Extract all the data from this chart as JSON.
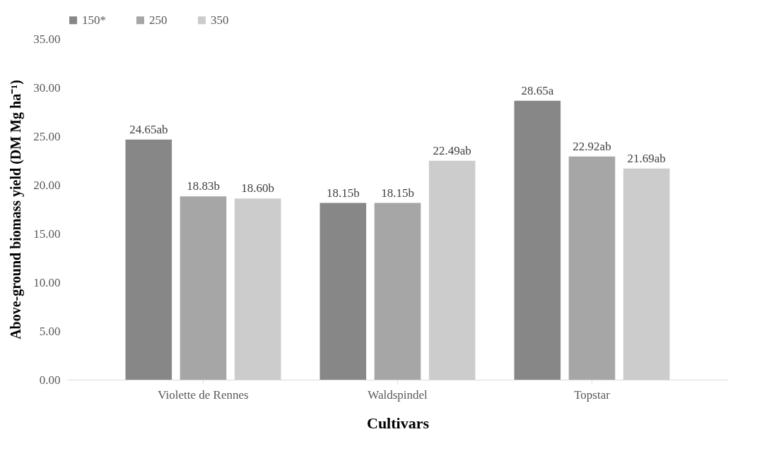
{
  "chart_data": {
    "type": "bar",
    "xlabel": "Cultivars",
    "ylabel": "Above-ground biomass yield (DM Mg ha⁻¹)",
    "categories": [
      "Violette de Rennes",
      "Waldspindel",
      "Topstar"
    ],
    "series": [
      {
        "name": "150*",
        "color": "#878787",
        "values": [
          24.65,
          18.15,
          28.65
        ],
        "value_labels": [
          "24.65ab",
          "18.15b",
          "28.65a"
        ]
      },
      {
        "name": "250",
        "color": "#a6a6a6",
        "values": [
          18.83,
          18.15,
          22.92
        ],
        "value_labels": [
          "18.83b",
          "18.15b",
          "22.92ab"
        ]
      },
      {
        "name": "350",
        "color": "#cccccc",
        "values": [
          18.6,
          22.49,
          21.69
        ],
        "value_labels": [
          "18.60b",
          "22.49ab",
          "21.69ab"
        ]
      }
    ],
    "ylim": [
      0,
      35
    ],
    "yticks": [
      {
        "value": 0,
        "label": "0.00"
      },
      {
        "value": 5,
        "label": "5.00"
      },
      {
        "value": 10,
        "label": "10.00"
      },
      {
        "value": 15,
        "label": "15.00"
      },
      {
        "value": 20,
        "label": "20.00"
      },
      {
        "value": 25,
        "label": "25.00"
      },
      {
        "value": 30,
        "label": "30.00"
      },
      {
        "value": 35,
        "label": "35.00"
      }
    ],
    "legend": "top"
  }
}
